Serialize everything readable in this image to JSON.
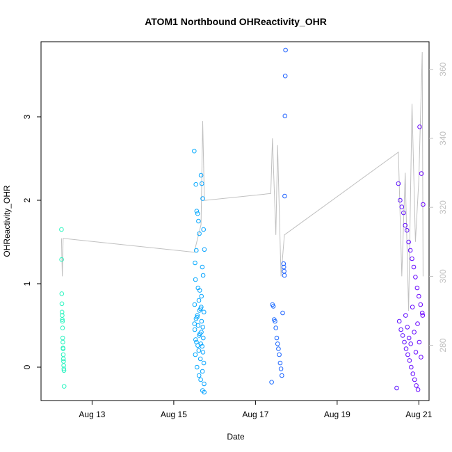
{
  "chart_data": {
    "type": "scatter",
    "title": "ATOM1 Northbound OHReactivity_OHR",
    "xlabel": "Date",
    "ylabel": "OHReactivity_OHR",
    "x_ticks": [
      "Aug 13",
      "Aug 15",
      "Aug 17",
      "Aug 19",
      "Aug 21"
    ],
    "y_ticks": [
      "0",
      "1",
      "2",
      "3"
    ],
    "y2_ticks": [
      "280",
      "300",
      "320",
      "340",
      "360"
    ],
    "ylim": [
      -0.4,
      3.9
    ],
    "y2lim": [
      264,
      368
    ],
    "color_scale": {
      "start": "#33ffb3",
      "mid1": "#00bfff",
      "mid2": "#2255ff",
      "end": "#7000ff"
    },
    "line_color": "#c0c0c0",
    "series": [
      {
        "values": [
          [
            "2016-08-12T06:00",
            1.65
          ],
          [
            "2016-08-12T06:05",
            1.29
          ],
          [
            "2016-08-12T06:10",
            0.88
          ],
          [
            "2016-08-12T06:15",
            0.76
          ],
          [
            "2016-08-12T06:20",
            0.66
          ],
          [
            "2016-08-12T06:25",
            0.62
          ],
          [
            "2016-08-12T06:30",
            0.57
          ],
          [
            "2016-08-12T06:35",
            0.55
          ],
          [
            "2016-08-12T06:40",
            0.47
          ],
          [
            "2016-08-12T06:45",
            0.35
          ],
          [
            "2016-08-12T06:50",
            0.3
          ],
          [
            "2016-08-12T06:55",
            0.23
          ],
          [
            "2016-08-12T07:00",
            0.22
          ],
          [
            "2016-08-12T07:05",
            0.15
          ],
          [
            "2016-08-12T07:10",
            0.1
          ],
          [
            "2016-08-12T07:15",
            0.07
          ],
          [
            "2016-08-12T07:20",
            0.02
          ],
          [
            "2016-08-12T07:25",
            -0.02
          ],
          [
            "2016-08-12T07:30",
            -0.04
          ],
          [
            "2016-08-12T07:35",
            -0.23
          ],
          [
            "2016-08-15T12:00",
            2.59
          ],
          [
            "2016-08-15T13:00",
            2.19
          ],
          [
            "2016-08-15T13:30",
            1.87
          ],
          [
            "2016-08-15T14:00",
            1.84
          ],
          [
            "2016-08-15T14:30",
            1.75
          ],
          [
            "2016-08-15T15:00",
            1.6
          ],
          [
            "2016-08-15T16:00",
            2.3
          ],
          [
            "2016-08-15T16:30",
            2.2
          ],
          [
            "2016-08-15T17:00",
            2.02
          ],
          [
            "2016-08-15T17:30",
            1.65
          ],
          [
            "2016-08-15T18:00",
            1.41
          ],
          [
            "2016-08-15T13:15",
            1.4
          ],
          [
            "2016-08-15T12:30",
            1.25
          ],
          [
            "2016-08-15T16:45",
            1.2
          ],
          [
            "2016-08-15T17:15",
            1.1
          ],
          [
            "2016-08-15T12:45",
            1.05
          ],
          [
            "2016-08-15T14:15",
            0.95
          ],
          [
            "2016-08-15T15:15",
            0.92
          ],
          [
            "2016-08-15T16:15",
            0.85
          ],
          [
            "2016-08-15T14:45",
            0.8
          ],
          [
            "2016-08-15T12:15",
            0.75
          ],
          [
            "2016-08-15T15:45",
            0.7
          ],
          [
            "2016-08-15T17:45",
            0.66
          ],
          [
            "2016-08-15T13:45",
            0.6
          ],
          [
            "2016-08-15T16:20",
            0.55
          ],
          [
            "2016-08-15T14:20",
            0.5
          ],
          [
            "2016-08-15T12:20",
            0.45
          ],
          [
            "2016-08-15T15:20",
            0.4
          ],
          [
            "2016-08-15T17:20",
            0.35
          ],
          [
            "2016-08-15T13:20",
            0.3
          ],
          [
            "2016-08-15T16:40",
            0.25
          ],
          [
            "2016-08-15T14:40",
            0.2
          ],
          [
            "2016-08-15T12:40",
            0.15
          ],
          [
            "2016-08-15T15:40",
            0.1
          ],
          [
            "2016-08-15T17:40",
            0.05
          ],
          [
            "2016-08-15T13:40",
            0.0
          ],
          [
            "2016-08-15T16:50",
            -0.05
          ],
          [
            "2016-08-15T14:50",
            -0.1
          ],
          [
            "2016-08-15T15:50",
            -0.15
          ],
          [
            "2016-08-15T17:50",
            -0.2
          ],
          [
            "2016-08-15T16:55",
            -0.28
          ],
          [
            "2016-08-15T17:55",
            -0.3
          ],
          [
            "2016-08-15T13:50",
            0.62
          ],
          [
            "2016-08-15T14:55",
            0.38
          ],
          [
            "2016-08-15T15:55",
            0.28
          ],
          [
            "2016-08-15T16:05",
            0.72
          ],
          [
            "2016-08-15T17:05",
            0.48
          ],
          [
            "2016-08-15T12:50",
            0.33
          ],
          [
            "2016-08-15T13:05",
            0.58
          ],
          [
            "2016-08-15T14:05",
            0.26
          ],
          [
            "2016-08-15T15:05",
            0.68
          ],
          [
            "2016-08-15T16:10",
            0.42
          ],
          [
            "2016-08-15T17:10",
            0.18
          ],
          [
            "2016-08-15T12:10",
            0.52
          ],
          [
            "2016-08-17T10:00",
            0.75
          ],
          [
            "2016-08-17T10:30",
            0.73
          ],
          [
            "2016-08-17T11:00",
            0.57
          ],
          [
            "2016-08-17T11:30",
            0.55
          ],
          [
            "2016-08-17T12:00",
            0.47
          ],
          [
            "2016-08-17T12:30",
            0.35
          ],
          [
            "2016-08-17T13:00",
            0.28
          ],
          [
            "2016-08-17T13:30",
            0.22
          ],
          [
            "2016-08-17T14:00",
            0.15
          ],
          [
            "2016-08-17T14:30",
            0.05
          ],
          [
            "2016-08-17T15:00",
            -0.02
          ],
          [
            "2016-08-17T15:30",
            -0.1
          ],
          [
            "2016-08-17T09:30",
            -0.18
          ],
          [
            "2016-08-17T16:00",
            0.65
          ],
          [
            "2016-08-17T16:30",
            1.24
          ],
          [
            "2016-08-17T16:40",
            1.2
          ],
          [
            "2016-08-17T16:50",
            1.15
          ],
          [
            "2016-08-17T17:00",
            1.1
          ],
          [
            "2016-08-17T17:10",
            2.05
          ],
          [
            "2016-08-17T17:20",
            3.01
          ],
          [
            "2016-08-17T17:30",
            3.49
          ],
          [
            "2016-08-17T17:40",
            3.8
          ],
          [
            "2016-08-20T12:00",
            2.2
          ],
          [
            "2016-08-20T13:00",
            2.0
          ],
          [
            "2016-08-20T14:00",
            1.92
          ],
          [
            "2016-08-20T15:00",
            1.85
          ],
          [
            "2016-08-20T16:00",
            1.7
          ],
          [
            "2016-08-20T17:00",
            1.64
          ],
          [
            "2016-08-20T18:00",
            1.5
          ],
          [
            "2016-08-20T19:00",
            1.4
          ],
          [
            "2016-08-20T20:00",
            1.3
          ],
          [
            "2016-08-20T21:00",
            1.2
          ],
          [
            "2016-08-20T22:00",
            1.08
          ],
          [
            "2016-08-20T23:00",
            0.95
          ],
          [
            "2016-08-21T00:00",
            0.85
          ],
          [
            "2016-08-21T01:00",
            0.75
          ],
          [
            "2016-08-21T02:00",
            0.65
          ],
          [
            "2016-08-20T12:30",
            0.55
          ],
          [
            "2016-08-20T13:30",
            0.45
          ],
          [
            "2016-08-20T14:30",
            0.38
          ],
          [
            "2016-08-20T15:30",
            0.3
          ],
          [
            "2016-08-20T16:30",
            0.22
          ],
          [
            "2016-08-20T17:30",
            0.15
          ],
          [
            "2016-08-20T18:30",
            0.08
          ],
          [
            "2016-08-20T19:30",
            0.0
          ],
          [
            "2016-08-20T20:30",
            -0.08
          ],
          [
            "2016-08-20T21:30",
            -0.15
          ],
          [
            "2016-08-20T22:30",
            -0.22
          ],
          [
            "2016-08-20T11:00",
            -0.25
          ],
          [
            "2016-08-20T23:30",
            -0.27
          ],
          [
            "2016-08-21T00:30",
            2.88
          ],
          [
            "2016-08-21T01:30",
            2.32
          ],
          [
            "2016-08-21T02:30",
            1.95
          ],
          [
            "2016-08-20T16:15",
            0.62
          ],
          [
            "2016-08-20T17:15",
            0.48
          ],
          [
            "2016-08-20T18:15",
            0.35
          ],
          [
            "2016-08-20T19:15",
            0.28
          ],
          [
            "2016-08-20T20:15",
            0.72
          ],
          [
            "2016-08-20T21:15",
            0.42
          ],
          [
            "2016-08-20T22:15",
            0.18
          ],
          [
            "2016-08-20T23:15",
            0.52
          ],
          [
            "2016-08-21T00:15",
            0.3
          ],
          [
            "2016-08-21T01:15",
            0.12
          ],
          [
            "2016-08-21T02:15",
            0.62
          ]
        ]
      }
    ],
    "line2": [
      [
        "2016-08-12T06:00",
        311
      ],
      [
        "2016-08-12T06:30",
        300
      ],
      [
        "2016-08-12T07:00",
        311
      ],
      [
        "2016-08-15T12:00",
        307
      ],
      [
        "2016-08-15T16:00",
        315
      ],
      [
        "2016-08-15T17:00",
        345
      ],
      [
        "2016-08-15T18:00",
        322
      ],
      [
        "2016-08-17T09:00",
        324
      ],
      [
        "2016-08-17T10:00",
        340
      ],
      [
        "2016-08-17T12:00",
        312
      ],
      [
        "2016-08-17T13:00",
        338
      ],
      [
        "2016-08-17T15:00",
        300
      ],
      [
        "2016-08-17T17:00",
        312
      ],
      [
        "2016-08-20T12:00",
        336
      ],
      [
        "2016-08-20T14:00",
        300
      ],
      [
        "2016-08-20T16:00",
        330
      ],
      [
        "2016-08-20T18:00",
        290
      ],
      [
        "2016-08-20T20:00",
        350
      ],
      [
        "2016-08-20T22:00",
        310
      ],
      [
        "2016-08-21T00:00",
        328
      ],
      [
        "2016-08-21T02:00",
        365
      ],
      [
        "2016-08-21T02:30",
        300
      ]
    ]
  }
}
